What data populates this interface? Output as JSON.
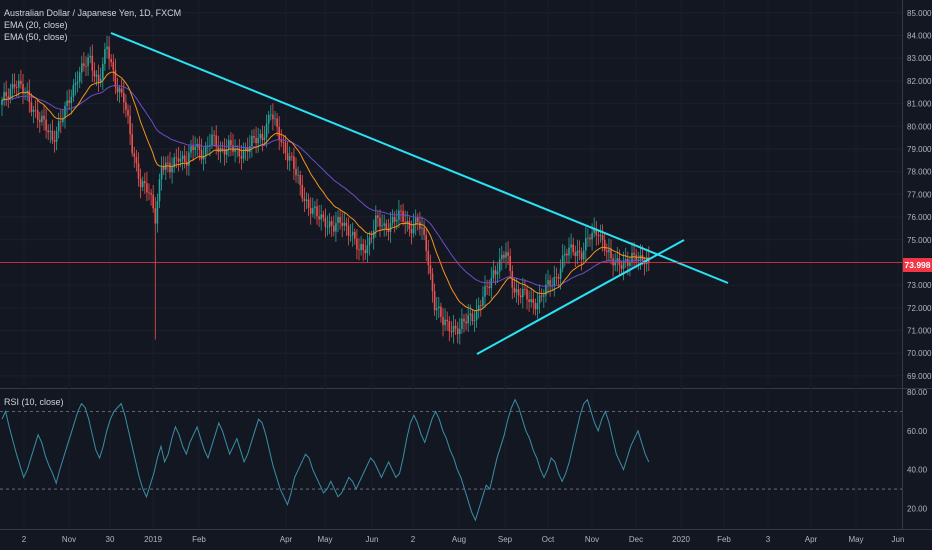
{
  "header": {
    "symbol_line": "Australian Dollar / Japanese Yen, 1D, FXCM",
    "ema20_label": "EMA (20, close)",
    "ema50_label": "EMA (50, close)",
    "rsi_label": "RSI (10, close)"
  },
  "last_price": "73.998",
  "colors": {
    "background": "#131722",
    "up_candle": "#26a69a",
    "down_candle": "#ef5350",
    "ema20": "#f7931a",
    "ema50": "#6c4cc7",
    "trendline": "#29e3f5",
    "rsi_line": "#3a8fa6",
    "price_line": "#f23645"
  },
  "chart_data": [
    {
      "type": "candlestick",
      "title": "Australian Dollar / Japanese Yen, 1D, FXCM",
      "x_ticks": [
        "2",
        "Nov",
        "30",
        "2019",
        "Feb",
        "Apr",
        "May",
        "Jun",
        "2",
        "Aug",
        "Sep",
        "Oct",
        "Nov",
        "Dec",
        "2020",
        "Feb",
        "3",
        "Apr",
        "May",
        "Jun"
      ],
      "y_ticks": [
        "85.000",
        "84.000",
        "83.000",
        "82.000",
        "81.000",
        "80.000",
        "79.000",
        "78.000",
        "77.000",
        "76.000",
        "75.000",
        "74.000",
        "73.000",
        "72.000",
        "71.000",
        "70.000",
        "69.000"
      ],
      "ylim": [
        68.6,
        85.3
      ],
      "close_path": [
        [
          0,
          81.0
        ],
        [
          6,
          82.0
        ],
        [
          12,
          81.3
        ],
        [
          18,
          80.3
        ],
        [
          24,
          79.5
        ],
        [
          30,
          80.6
        ],
        [
          36,
          82.3
        ],
        [
          42,
          82.9
        ],
        [
          46,
          82.0
        ],
        [
          50,
          83.4
        ],
        [
          54,
          82.0
        ],
        [
          58,
          81.2
        ],
        [
          62,
          79.0
        ],
        [
          66,
          77.6
        ],
        [
          70,
          77.0
        ],
        [
          73,
          76.0
        ],
        [
          76,
          78.4
        ],
        [
          80,
          78.0
        ],
        [
          84,
          78.8
        ],
        [
          88,
          78.4
        ],
        [
          92,
          79.2
        ],
        [
          96,
          78.8
        ],
        [
          100,
          79.4
        ],
        [
          104,
          79.0
        ],
        [
          108,
          79.1
        ],
        [
          112,
          78.8
        ],
        [
          116,
          79.0
        ],
        [
          120,
          79.3
        ],
        [
          124,
          79.6
        ],
        [
          128,
          80.6
        ],
        [
          130,
          80.0
        ],
        [
          134,
          79.2
        ],
        [
          138,
          78.4
        ],
        [
          142,
          77.3
        ],
        [
          146,
          76.5
        ],
        [
          150,
          76.0
        ],
        [
          154,
          75.9
        ],
        [
          158,
          75.5
        ],
        [
          162,
          75.8
        ],
        [
          166,
          75.4
        ],
        [
          170,
          74.4
        ],
        [
          174,
          74.8
        ],
        [
          178,
          75.8
        ],
        [
          182,
          75.5
        ],
        [
          186,
          75.9
        ],
        [
          190,
          76.0
        ],
        [
          194,
          75.6
        ],
        [
          198,
          75.8
        ],
        [
          202,
          74.7
        ],
        [
          206,
          72.2
        ],
        [
          210,
          71.3
        ],
        [
          214,
          71.2
        ],
        [
          218,
          71.0
        ],
        [
          222,
          71.6
        ],
        [
          226,
          71.8
        ],
        [
          230,
          72.6
        ],
        [
          234,
          73.6
        ],
        [
          238,
          74.1
        ],
        [
          240,
          74.4
        ],
        [
          244,
          72.8
        ],
        [
          248,
          72.6
        ],
        [
          252,
          72.2
        ],
        [
          256,
          72.4
        ],
        [
          260,
          72.9
        ],
        [
          264,
          73.4
        ],
        [
          268,
          74.3
        ],
        [
          272,
          74.6
        ],
        [
          276,
          74.4
        ],
        [
          280,
          75.1
        ],
        [
          284,
          75.5
        ],
        [
          286,
          74.9
        ],
        [
          290,
          74.0
        ],
        [
          294,
          74.1
        ],
        [
          298,
          73.9
        ],
        [
          302,
          74.3
        ],
        [
          306,
          74.2
        ],
        [
          308,
          74.0
        ]
      ],
      "spike_low": 70.6,
      "last": 73.998
    },
    {
      "type": "line",
      "series": [
        {
          "name": "EMA (20, close)",
          "x_step": 1
        },
        {
          "name": "EMA (50, close)",
          "x_step": 1
        }
      ]
    },
    {
      "type": "line",
      "title": "RSI (10, close)",
      "ylim": [
        12,
        81
      ],
      "y_ticks": [
        "80.00",
        "60.00",
        "40.00",
        "20.00"
      ],
      "bands": [
        30,
        70
      ],
      "values": [
        66,
        70,
        62,
        55,
        48,
        42,
        36,
        40,
        46,
        52,
        58,
        54,
        47,
        42,
        38,
        33,
        40,
        46,
        52,
        58,
        64,
        70,
        74,
        72,
        66,
        58,
        50,
        46,
        52,
        60,
        66,
        70,
        72,
        74,
        68,
        60,
        52,
        44,
        36,
        30,
        26,
        32,
        38,
        46,
        52,
        44,
        48,
        56,
        62,
        58,
        52,
        48,
        54,
        58,
        62,
        56,
        50,
        46,
        52,
        58,
        64,
        60,
        54,
        48,
        52,
        56,
        50,
        44,
        48,
        54,
        60,
        66,
        64,
        58,
        50,
        42,
        36,
        30,
        26,
        22,
        28,
        36,
        40,
        44,
        48,
        46,
        40,
        36,
        32,
        28,
        30,
        34,
        30,
        26,
        28,
        32,
        36,
        34,
        30,
        34,
        38,
        42,
        46,
        44,
        40,
        36,
        40,
        44,
        40,
        36,
        38,
        46,
        56,
        64,
        68,
        64,
        58,
        54,
        60,
        66,
        70,
        66,
        60,
        56,
        50,
        46,
        40,
        36,
        30,
        24,
        18,
        14,
        20,
        26,
        32,
        30,
        38,
        46,
        52,
        58,
        66,
        72,
        76,
        72,
        66,
        60,
        56,
        50,
        46,
        40,
        36,
        40,
        46,
        44,
        38,
        34,
        38,
        44,
        52,
        60,
        68,
        74,
        76,
        70,
        64,
        60,
        66,
        70,
        64,
        56,
        48,
        44,
        40,
        46,
        52,
        56,
        60,
        54,
        48,
        44
      ]
    }
  ]
}
